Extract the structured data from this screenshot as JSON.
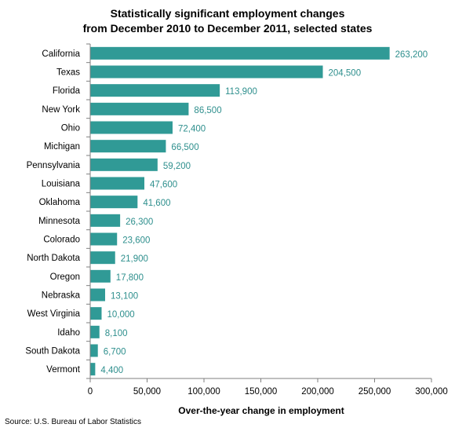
{
  "colors": {
    "bar": "#309a96",
    "value_label": "#2e8f8d",
    "axis": "#7f7f7f"
  },
  "source": "Source: U.S. Bureau of Labor Statistics",
  "chart_data": {
    "type": "bar",
    "orientation": "horizontal",
    "title_lines": [
      "Statistically significant employment changes",
      "from December 2010 to December 2011, selected states"
    ],
    "xlabel": "Over-the-year change in employment",
    "ylabel": "",
    "xlim": [
      0,
      300000
    ],
    "xticks": [
      0,
      50000,
      100000,
      150000,
      200000,
      250000,
      300000
    ],
    "xtick_labels": [
      "0",
      "50,000",
      "100,000",
      "150,000",
      "200,000",
      "250,000",
      "300,000"
    ],
    "grid": false,
    "categories": [
      "California",
      "Texas",
      "Florida",
      "New York",
      "Ohio",
      "Michigan",
      "Pennsylvania",
      "Louisiana",
      "Oklahoma",
      "Minnesota",
      "Colorado",
      "North Dakota",
      "Oregon",
      "Nebraska",
      "West Virginia",
      "Idaho",
      "South Dakota",
      "Vermont"
    ],
    "values": [
      263200,
      204500,
      113900,
      86500,
      72400,
      66500,
      59200,
      47600,
      41600,
      26300,
      23600,
      21900,
      17800,
      13100,
      10000,
      8100,
      6700,
      4400
    ],
    "value_labels": [
      "263,200",
      "204,500",
      "113,900",
      "86,500",
      "72,400",
      "66,500",
      "59,200",
      "47,600",
      "41,600",
      "26,300",
      "23,600",
      "21,900",
      "17,800",
      "13,100",
      "10,000",
      "8,100",
      "6,700",
      "4,400"
    ]
  }
}
